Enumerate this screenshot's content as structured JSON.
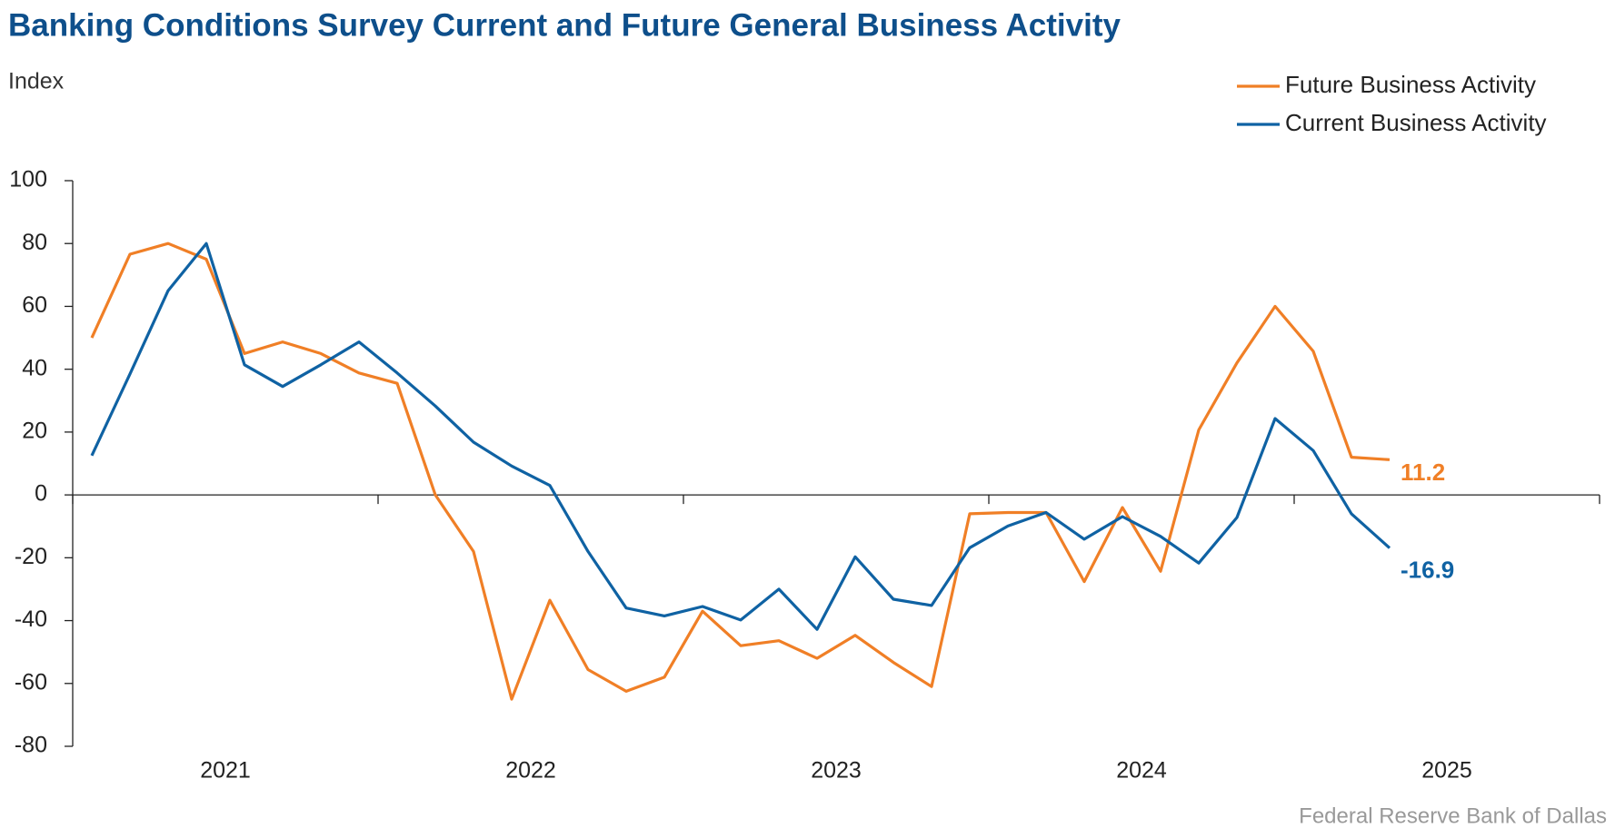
{
  "chart_data": {
    "type": "line",
    "title": "Banking Conditions Survey Current and Future General Business Activity",
    "y_label": "Index",
    "source": "Federal Reserve Bank of Dallas",
    "x": [
      2021.0625,
      2021.1875,
      2021.3125,
      2021.4375,
      2021.5625,
      2021.6875,
      2021.8125,
      2021.9375,
      2022.0625,
      2022.1875,
      2022.3125,
      2022.4375,
      2022.5625,
      2022.6875,
      2022.8125,
      2022.9375,
      2023.0625,
      2023.1875,
      2023.3125,
      2023.4375,
      2023.5625,
      2023.6875,
      2023.8125,
      2023.9375,
      2024.0625,
      2024.1875,
      2024.3125,
      2024.4375,
      2024.5625,
      2024.6875,
      2024.8125,
      2024.9375,
      2025.0625,
      2025.1875,
      2025.3125
    ],
    "xlim": [
      2021,
      2026
    ],
    "xticks": [
      2021,
      2022,
      2023,
      2024,
      2025,
      2026
    ],
    "year_labels": [
      "2021",
      "2022",
      "2023",
      "2024",
      "2025"
    ],
    "ylim": [
      -80,
      100
    ],
    "yticks": [
      -80,
      -60,
      -40,
      -20,
      0,
      20,
      40,
      60,
      80,
      100
    ],
    "grid": false,
    "legend": "top-right",
    "series": [
      {
        "name": "Future Business Activity",
        "color": "#f07f26",
        "values": [
          50,
          76.6,
          80,
          75,
          45,
          48.7,
          45,
          38.8,
          35.5,
          0,
          -18,
          -65,
          -33.5,
          -55.6,
          -62.5,
          -58,
          -37,
          -48,
          -46.4,
          -52,
          -44.7,
          -53.3,
          -61,
          -6,
          -5.6,
          -5.6,
          -27.6,
          -4,
          -24.3,
          20.7,
          42,
          60,
          45.7,
          12,
          11.2
        ]
      },
      {
        "name": "Current Business Activity",
        "color": "#0f62a3",
        "values": [
          12.5,
          38.5,
          65,
          80,
          41.4,
          34.5,
          41.4,
          48.7,
          38.8,
          28.3,
          16.8,
          9.2,
          3,
          -18,
          -36,
          -38.5,
          -35.5,
          -39.8,
          -30,
          -42.8,
          -19.7,
          -33.2,
          -35.2,
          -16.8,
          -9.9,
          -5.6,
          -14.1,
          -6.9,
          -13.2,
          -21.7,
          -7.2,
          24.3,
          14.1,
          -6,
          -16.9
        ]
      }
    ]
  }
}
